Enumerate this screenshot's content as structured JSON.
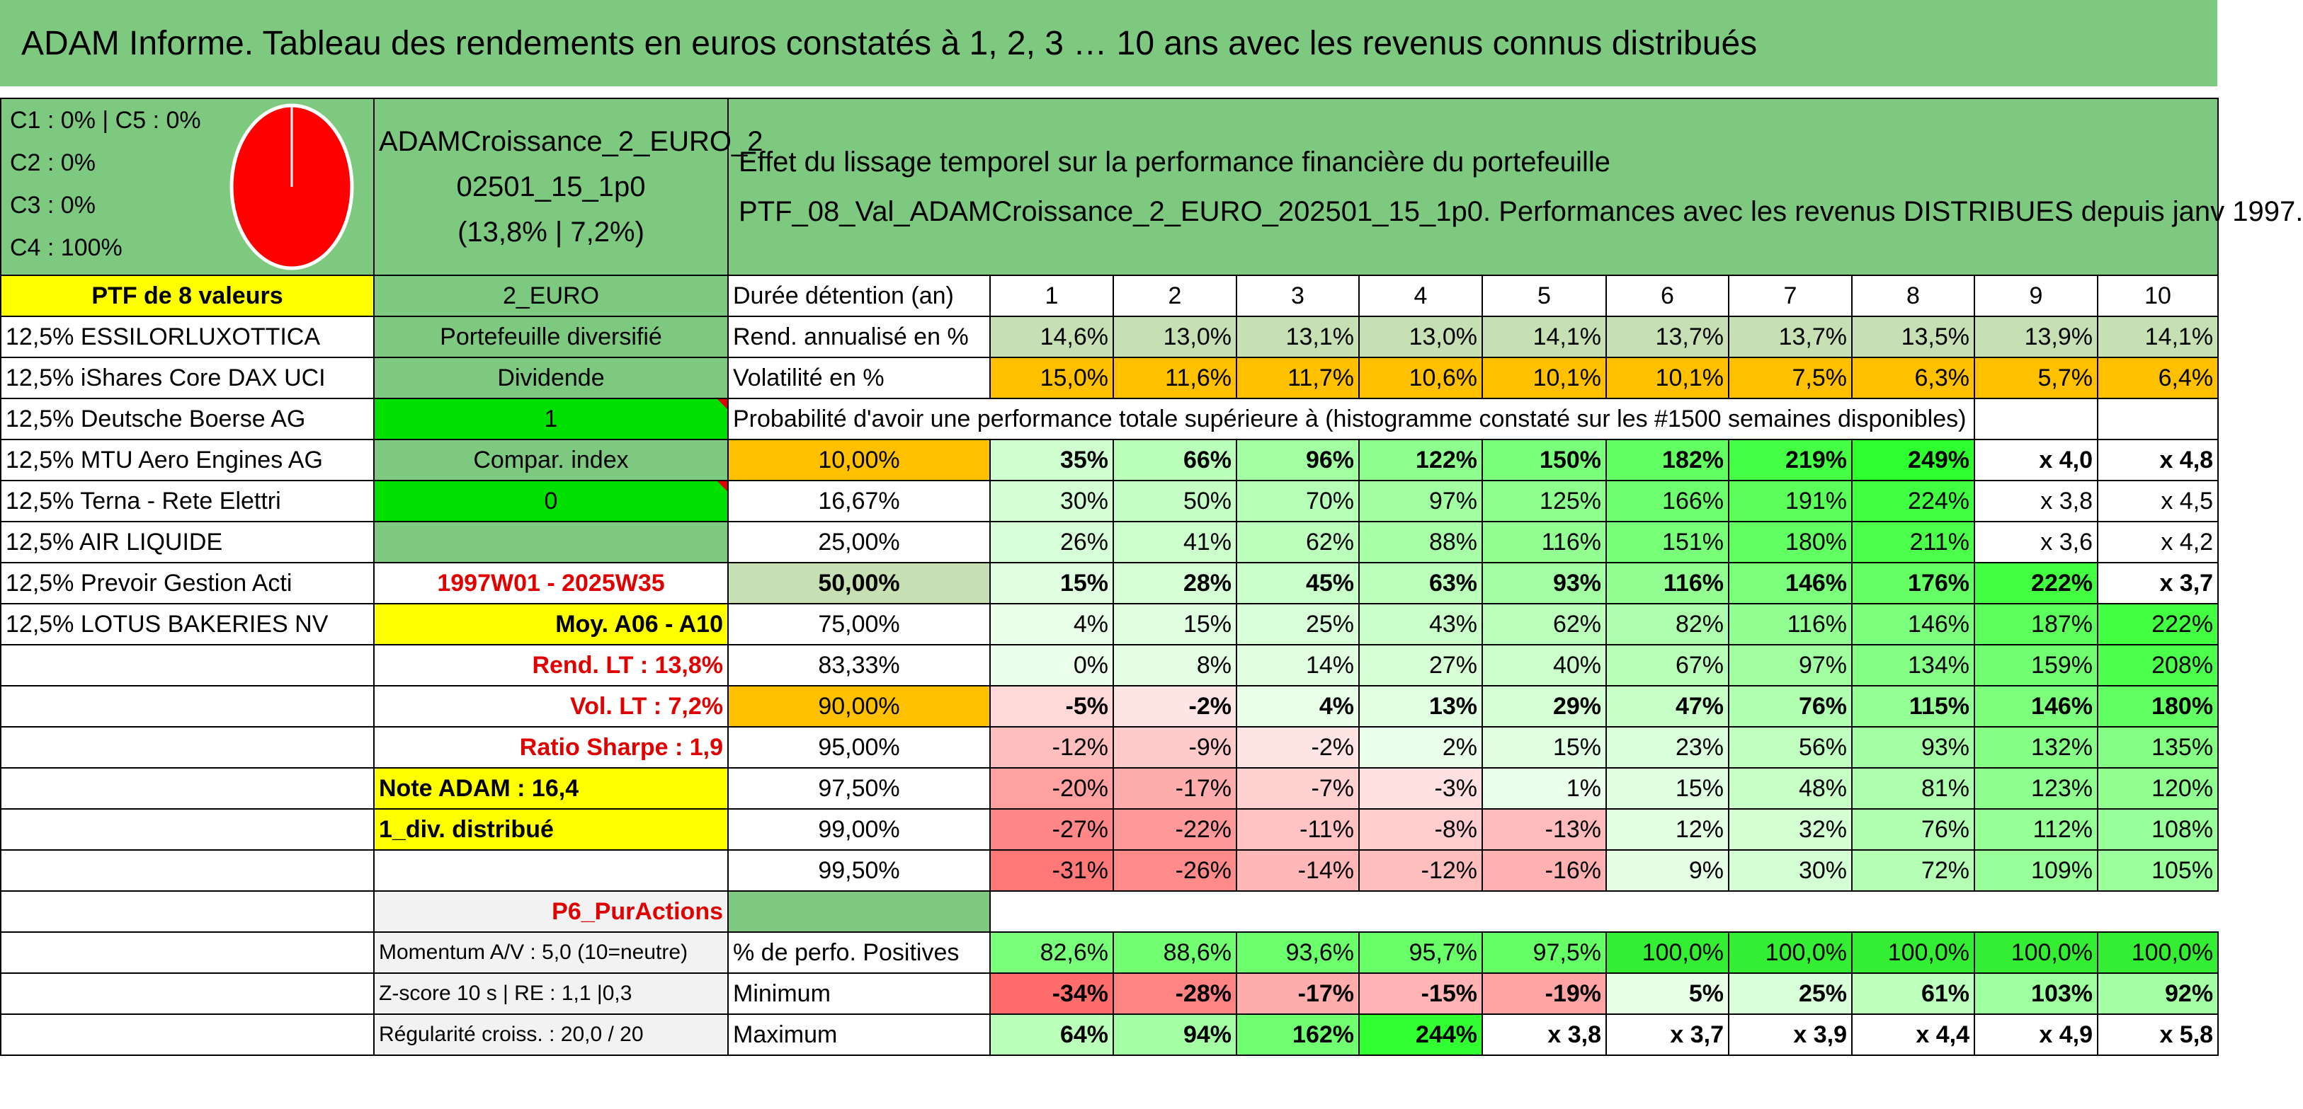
{
  "title": "ADAM Informe. Tableau des rendements en euros constatés à 1, 2, 3 … 10 ans avec les revenus connus distribués",
  "header": {
    "classes": [
      "C1 : 0% | C5 : 0%",
      "C2 : 0%",
      "C3 : 0%",
      "C4 : 100%"
    ],
    "pie_color": "#ff0000",
    "portfolio_name_line1": "ADAMCroissance_2_EURO_2",
    "portfolio_name_line2": "02501_15_1p0",
    "portfolio_name_line3": "(13,8% | 7,2%)",
    "effect_line1": "Effet du lissage temporel sur la performance financière du portefeuille",
    "effect_line2": "PTF_08_Val_ADAMCroissance_2_EURO_202501_15_1p0. Performances avec les revenus DISTRIBUES depuis janv 1997."
  },
  "holdings_title": "PTF de 8 valeurs",
  "holdings": [
    "12,5% ESSILORLUXOTTICA",
    "12,5% iShares Core DAX UCI",
    "12,5% Deutsche Boerse AG",
    "12,5% MTU Aero Engines AG",
    "12,5% Terna - Rete Elettri",
    "12,5% AIR LIQUIDE",
    "12,5% Prevoir Gestion Acti",
    "12,5% LOTUS BAKERIES NV"
  ],
  "info": {
    "currency": "2_EURO",
    "type": "Portefeuille diversifié",
    "dividende_label": "Dividende",
    "dividende_value": "1",
    "compar_label": "Compar. index",
    "compar_value": "0",
    "period": "1997W01 - 2025W35",
    "moy": "Moy. A06 - A10",
    "rend_lt": "Rend. LT : 13,8%",
    "vol_lt": "Vol. LT : 7,2%",
    "sharpe": "Ratio Sharpe : 1,9",
    "note": "Note ADAM : 16,4",
    "div": "1_div. distribué",
    "category": "P6_PurActions",
    "momentum": "Momentum A/V : 5,0 (10=neutre)",
    "zscore": "Z-score 10 s | RE : 1,1 |0,3",
    "regularite": "Régularité croiss. : 20,0 / 20"
  },
  "table": {
    "duration_label": "Durée détention (an)",
    "years": [
      "1",
      "2",
      "3",
      "4",
      "5",
      "6",
      "7",
      "8",
      "9",
      "10"
    ],
    "rend_label": "Rend. annualisé en %",
    "rend": [
      "14,6%",
      "13,0%",
      "13,1%",
      "13,0%",
      "14,1%",
      "13,7%",
      "13,7%",
      "13,5%",
      "13,9%",
      "14,1%"
    ],
    "vol_label": "Volatilité en %",
    "vol": [
      "15,0%",
      "11,6%",
      "11,7%",
      "10,6%",
      "10,1%",
      "10,1%",
      "7,5%",
      "6,3%",
      "5,7%",
      "6,4%"
    ],
    "prob_title": "Probabilité d'avoir une performance totale supérieure à (histogramme constaté sur les #1500 semaines disponibles)",
    "prob_rows": [
      {
        "p": "10,00%",
        "v": [
          "35%",
          "66%",
          "96%",
          "122%",
          "150%",
          "182%",
          "219%",
          "249%",
          "x 4,0",
          "x 4,8"
        ]
      },
      {
        "p": "16,67%",
        "v": [
          "30%",
          "50%",
          "70%",
          "97%",
          "125%",
          "166%",
          "191%",
          "224%",
          "x 3,8",
          "x 4,5"
        ]
      },
      {
        "p": "25,00%",
        "v": [
          "26%",
          "41%",
          "62%",
          "88%",
          "116%",
          "151%",
          "180%",
          "211%",
          "x 3,6",
          "x 4,2"
        ]
      },
      {
        "p": "50,00%",
        "v": [
          "15%",
          "28%",
          "45%",
          "63%",
          "93%",
          "116%",
          "146%",
          "176%",
          "222%",
          "x 3,7"
        ]
      },
      {
        "p": "75,00%",
        "v": [
          "4%",
          "15%",
          "25%",
          "43%",
          "62%",
          "82%",
          "116%",
          "146%",
          "187%",
          "222%"
        ]
      },
      {
        "p": "83,33%",
        "v": [
          "0%",
          "8%",
          "14%",
          "27%",
          "40%",
          "67%",
          "97%",
          "134%",
          "159%",
          "208%"
        ]
      },
      {
        "p": "90,00%",
        "v": [
          "-5%",
          "-2%",
          "4%",
          "13%",
          "29%",
          "47%",
          "76%",
          "115%",
          "146%",
          "180%"
        ]
      },
      {
        "p": "95,00%",
        "v": [
          "-12%",
          "-9%",
          "-2%",
          "2%",
          "15%",
          "23%",
          "56%",
          "93%",
          "132%",
          "135%"
        ]
      },
      {
        "p": "97,50%",
        "v": [
          "-20%",
          "-17%",
          "-7%",
          "-3%",
          "1%",
          "15%",
          "48%",
          "81%",
          "123%",
          "120%"
        ]
      },
      {
        "p": "99,00%",
        "v": [
          "-27%",
          "-22%",
          "-11%",
          "-8%",
          "-13%",
          "12%",
          "32%",
          "76%",
          "112%",
          "108%"
        ]
      },
      {
        "p": "99,50%",
        "v": [
          "-31%",
          "-26%",
          "-14%",
          "-12%",
          "-16%",
          "9%",
          "30%",
          "72%",
          "109%",
          "105%"
        ]
      }
    ],
    "pos_label": "% de perfo. Positives",
    "pos": [
      "82,6%",
      "88,6%",
      "93,6%",
      "95,7%",
      "97,5%",
      "100,0%",
      "100,0%",
      "100,0%",
      "100,0%",
      "100,0%"
    ],
    "min_label": "Minimum",
    "min": [
      "-34%",
      "-28%",
      "-17%",
      "-15%",
      "-19%",
      "5%",
      "25%",
      "61%",
      "103%",
      "92%"
    ],
    "max_label": "Maximum",
    "max": [
      "64%",
      "94%",
      "162%",
      "244%",
      "x 3,8",
      "x 3,7",
      "x 3,9",
      "x 4,4",
      "x 4,9",
      "x 5,8"
    ]
  }
}
